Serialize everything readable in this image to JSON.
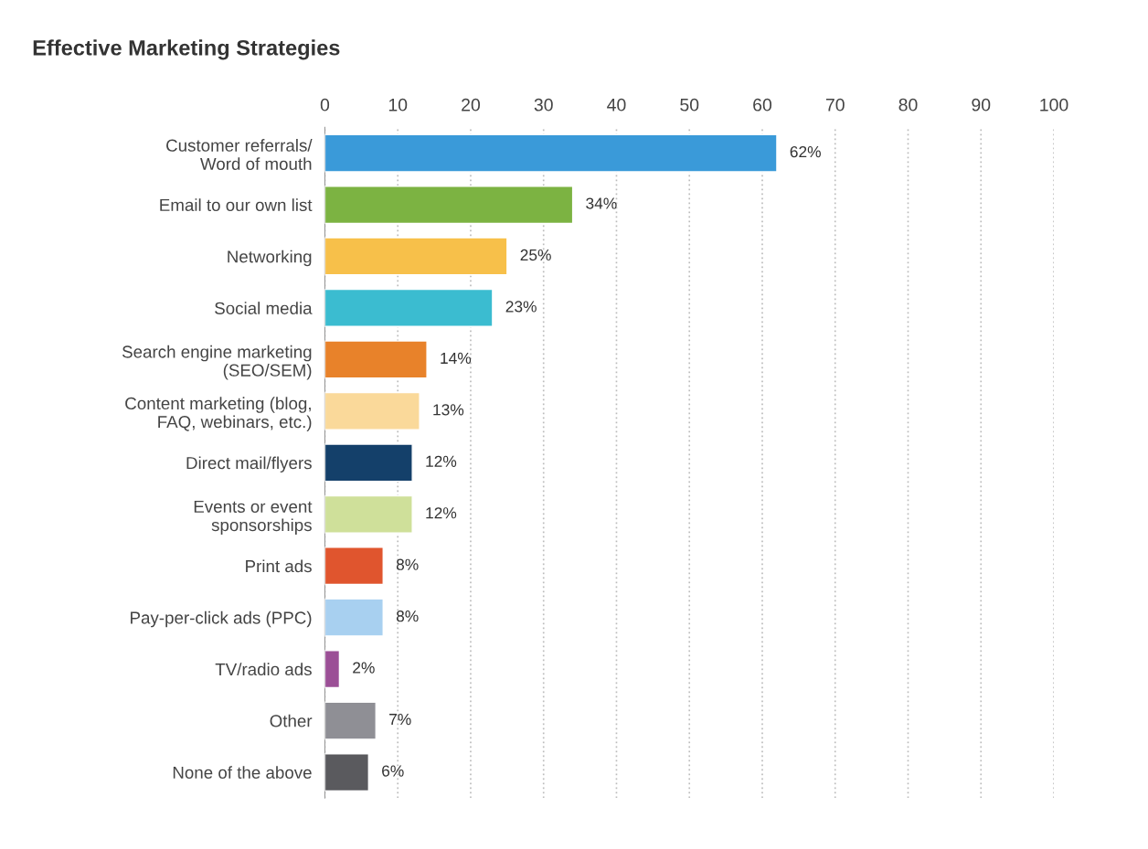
{
  "chart_data": {
    "type": "bar",
    "orientation": "horizontal",
    "title": "Effective Marketing Strategies",
    "categories": [
      "Customer referrals/\nWord of mouth",
      "Email to our own list",
      "Networking",
      "Social media",
      "Search engine marketing\n(SEO/SEM)",
      "Content marketing (blog,\nFAQ, webinars, etc.)",
      "Direct mail/flyers",
      "Events or event\nsponsorships",
      "Print ads",
      "Pay-per-click ads (PPC)",
      "TV/radio ads",
      "Other",
      "None of the above"
    ],
    "values": [
      62,
      34,
      25,
      23,
      14,
      13,
      12,
      12,
      8,
      8,
      2,
      7,
      6
    ],
    "value_labels": [
      "62%",
      "34%",
      "25%",
      "23%",
      "14%",
      "13%",
      "12%",
      "12%",
      "8%",
      "8%",
      "2%",
      "7%",
      "6%"
    ],
    "colors": [
      "#3a9ad9",
      "#7cb342",
      "#f7c04a",
      "#3bbcd0",
      "#e8822a",
      "#fad99a",
      "#14406a",
      "#cfe09a",
      "#e0552e",
      "#a8d0f0",
      "#9b4f96",
      "#8f8f95",
      "#5a5a5e"
    ],
    "xlim": [
      0,
      100
    ],
    "xticks": [
      0,
      10,
      20,
      30,
      40,
      50,
      60,
      70,
      80,
      90,
      100
    ],
    "grid": "x",
    "legend": false
  }
}
